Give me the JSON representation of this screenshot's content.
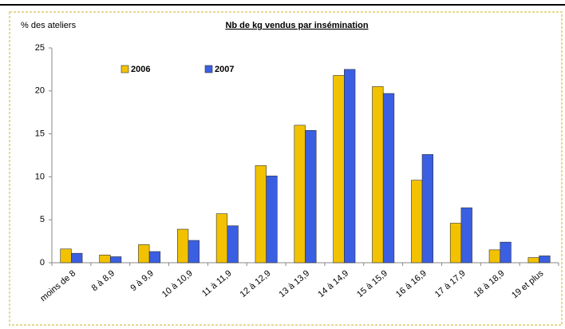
{
  "chart_data": {
    "type": "bar",
    "title": "Nb de kg vendus par insémination",
    "y_label": "% des ateliers",
    "categories": [
      "moins de 8",
      "8 à 8,9",
      "9 à 9,9",
      "10 à 10,9",
      "11 à 11,9",
      "12 à 12,9",
      "13 à 13,9",
      "14 à 14,9",
      "15 à 15,9",
      "16 à 16,9",
      "17 à 17,9",
      "18 à 18,9",
      "19 et plus"
    ],
    "series": [
      {
        "name": "2006",
        "color": "#f2c200",
        "values": [
          1.6,
          0.9,
          2.1,
          3.9,
          5.7,
          11.3,
          16.0,
          21.8,
          20.5,
          9.6,
          4.6,
          1.5,
          0.6
        ]
      },
      {
        "name": "2007",
        "color": "#3b5fe2",
        "values": [
          1.1,
          0.7,
          1.3,
          2.6,
          4.3,
          10.1,
          15.4,
          22.5,
          19.7,
          12.6,
          6.4,
          2.4,
          0.8
        ]
      }
    ],
    "ylim": [
      0,
      25
    ],
    "yticks": [
      0,
      5,
      10,
      15,
      20,
      25
    ],
    "grid": false
  }
}
